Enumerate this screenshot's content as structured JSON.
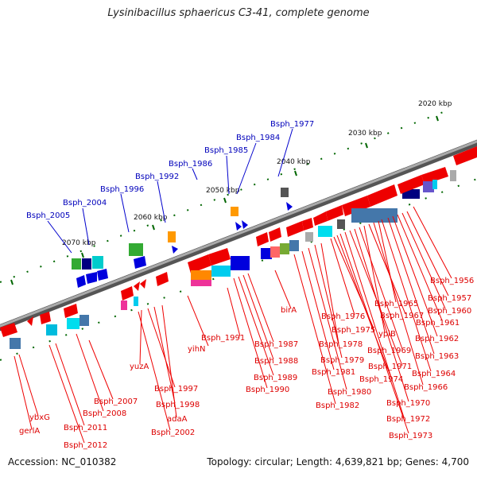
{
  "title": "Lysinibacillus sphaericus C3-41, complete genome",
  "footer": {
    "accession": "Accession: NC_010382",
    "topology": "Topology: circular; Length: 4,639,821 bp; Genes: 4,700"
  },
  "kbp_labels": [
    "2020 kbp",
    "2030 kbp",
    "2040 kbp",
    "2050 kbp",
    "2060 kbp",
    "2070 kbp"
  ],
  "colors": {
    "forward_gene": "#0000dd",
    "reverse_gene": "#ee0000",
    "backbone": "#888888",
    "tick": "#006600"
  },
  "forward_genes": [
    "Bsph_1977",
    "Bsph_1984",
    "Bsph_1985",
    "Bsph_1986",
    "Bsph_1992",
    "Bsph_1996",
    "Bsph_2004",
    "Bsph_2005"
  ],
  "reverse_genes": [
    "Bsph_1956",
    "Bsph_1957",
    "Bsph_1960",
    "Bsph_1961",
    "Bsph_1962",
    "Bsph_1963",
    "Bsph_1964",
    "Bsph_1965",
    "Bsph_1966",
    "Bsph_1967",
    "ypiB",
    "Bsph_1969",
    "Bsph_1970",
    "Bsph_1971",
    "Bsph_1972",
    "Bsph_1973",
    "Bsph_1974",
    "Bsph_1975",
    "Bsph_1976",
    "birA",
    "Bsph_1978",
    "Bsph_1979",
    "Bsph_1980",
    "Bsph_1981",
    "Bsph_1982",
    "Bsph_1987",
    "Bsph_1988",
    "Bsph_1989",
    "Bsph_1990",
    "Bsph_1991",
    "yihN",
    "yuzA",
    "Bsph_1997",
    "Bsph_1998",
    "adaA",
    "Bsph_2002",
    "Bsph_2007",
    "Bsph_2008",
    "Bsph_2011",
    "Bsph_2012",
    "ybxG",
    "gerlA"
  ]
}
